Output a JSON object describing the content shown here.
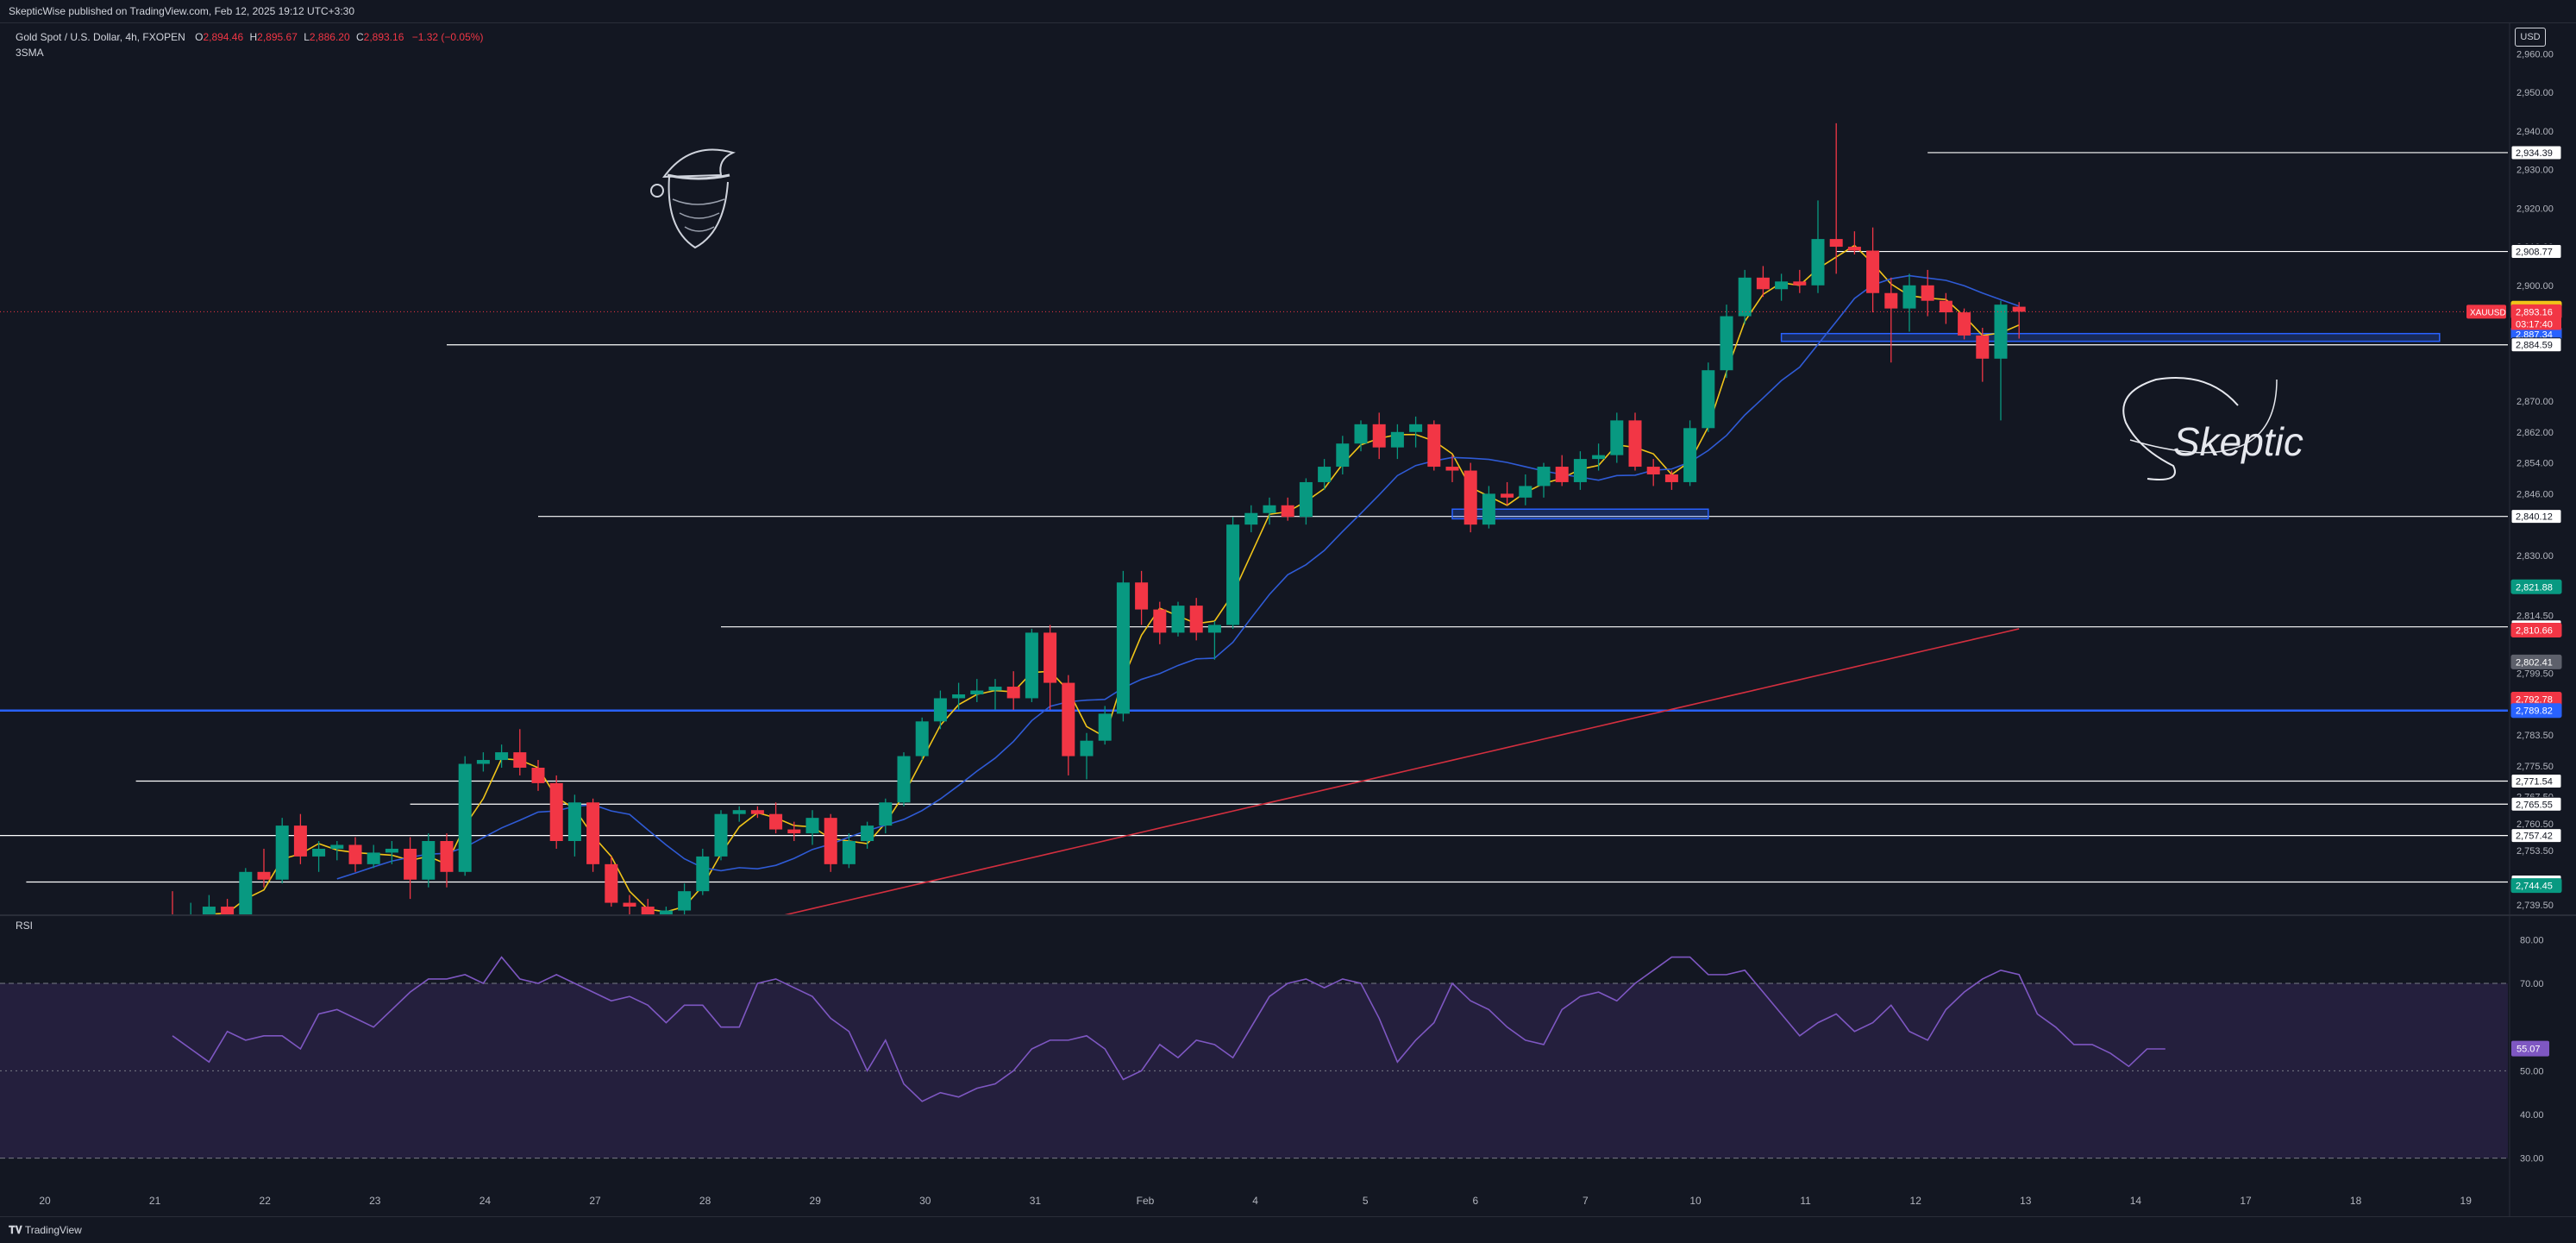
{
  "header": {
    "published": "SkepticWise published on TradingView.com, Feb 12, 2025 19:12 UTC+3:30"
  },
  "legend": {
    "symbol": "Gold Spot / U.S. Dollar, 4h, FXOPEN",
    "o_label": "O",
    "o_value": "2,894.46",
    "h_label": "H",
    "h_value": "2,895.67",
    "l_label": "L",
    "l_value": "2,886.20",
    "c_label": "C",
    "c_value": "2,893.16",
    "change": "−1.32 (−0.05%)",
    "indicator": "3SMA"
  },
  "currency": "USD",
  "symbol_tag": "XAUUSD",
  "countdown": "03:17:40",
  "rsi_label": "RSI",
  "rsi_value": "55.07",
  "signature": "Skeptic",
  "footer": {
    "brand": "TradingView"
  },
  "colors": {
    "background": "#131722",
    "up": "#089981",
    "down": "#f23645",
    "sma_fast": "#f0c419",
    "sma_mid": "#2f5bd6",
    "sma_slow": "#d32f3f",
    "rsi_line": "#7e57c2",
    "rsi_band": "#241f3d",
    "zone_blue": "#2962ff"
  },
  "chart_data": [
    {
      "type": "candlestick",
      "timeframe": "4h",
      "ylim": [
        2737,
        2965
      ],
      "y_ticks": [
        "2,960.00",
        "2,950.00",
        "2,940.00",
        "2,930.00",
        "2,920.00",
        "2,910.00",
        "2,900.00",
        "2,870.00",
        "2,862.00",
        "2,854.00",
        "2,846.00",
        "2,830.00",
        "2,814.50",
        "2,799.50",
        "2,783.50",
        "2,775.50",
        "2,767.50",
        "2,760.50",
        "2,753.50",
        "2,746.50",
        "2,739.50"
      ],
      "x_ticks": [
        "20",
        "21",
        "22",
        "23",
        "24",
        "27",
        "28",
        "29",
        "30",
        "31",
        "Feb",
        "4",
        "5",
        "6",
        "7",
        "10",
        "11",
        "12",
        "13",
        "14",
        "17",
        "18",
        "19"
      ],
      "candles": [
        [
          2736,
          2743,
          2733,
          2735
        ],
        [
          2735,
          2740,
          2732,
          2737
        ],
        [
          2737,
          2742,
          2734,
          2739
        ],
        [
          2739,
          2741,
          2735,
          2736
        ],
        [
          2736,
          2749,
          2735,
          2748
        ],
        [
          2748,
          2754,
          2744,
          2746
        ],
        [
          2746,
          2762,
          2745,
          2760
        ],
        [
          2760,
          2763,
          2750,
          2752
        ],
        [
          2752,
          2756,
          2748,
          2754
        ],
        [
          2754,
          2756,
          2751,
          2755
        ],
        [
          2755,
          2757,
          2748,
          2750
        ],
        [
          2750,
          2755,
          2749,
          2753
        ],
        [
          2753,
          2756,
          2750,
          2754
        ],
        [
          2754,
          2757,
          2741,
          2746
        ],
        [
          2746,
          2758,
          2744,
          2756
        ],
        [
          2756,
          2758,
          2744,
          2748
        ],
        [
          2748,
          2778,
          2747,
          2776
        ],
        [
          2776,
          2779,
          2774,
          2777
        ],
        [
          2777,
          2781,
          2775,
          2779
        ],
        [
          2779,
          2785,
          2773,
          2775
        ],
        [
          2775,
          2777,
          2769,
          2771
        ],
        [
          2771,
          2773,
          2754,
          2756
        ],
        [
          2756,
          2768,
          2752,
          2766
        ],
        [
          2766,
          2767,
          2748,
          2750
        ],
        [
          2750,
          2752,
          2739,
          2740
        ],
        [
          2740,
          2742,
          2737,
          2739
        ],
        [
          2739,
          2741,
          2735,
          2736
        ],
        [
          2736,
          2739,
          2733,
          2738
        ],
        [
          2738,
          2745,
          2737,
          2743
        ],
        [
          2743,
          2754,
          2742,
          2752
        ],
        [
          2752,
          2764,
          2751,
          2763
        ],
        [
          2763,
          2765,
          2761,
          2764
        ],
        [
          2764,
          2765,
          2762,
          2763
        ],
        [
          2763,
          2766,
          2758,
          2759
        ],
        [
          2759,
          2761,
          2756,
          2758
        ],
        [
          2758,
          2764,
          2755,
          2762
        ],
        [
          2762,
          2763,
          2748,
          2750
        ],
        [
          2750,
          2758,
          2749,
          2756
        ],
        [
          2756,
          2761,
          2754,
          2760
        ],
        [
          2760,
          2767,
          2758,
          2766
        ],
        [
          2766,
          2779,
          2765,
          2778
        ],
        [
          2778,
          2788,
          2777,
          2787
        ],
        [
          2787,
          2795,
          2785,
          2793
        ],
        [
          2793,
          2797,
          2790,
          2794
        ],
        [
          2794,
          2798,
          2792,
          2795
        ],
        [
          2795,
          2798,
          2790,
          2796
        ],
        [
          2796,
          2800,
          2790,
          2793
        ],
        [
          2793,
          2811,
          2792,
          2810
        ],
        [
          2810,
          2812,
          2790,
          2797
        ],
        [
          2797,
          2799,
          2773,
          2778
        ],
        [
          2778,
          2784,
          2772,
          2782
        ],
        [
          2782,
          2791,
          2781,
          2789
        ],
        [
          2789,
          2826,
          2787,
          2823
        ],
        [
          2823,
          2826,
          2812,
          2816
        ],
        [
          2816,
          2818,
          2807,
          2810
        ],
        [
          2810,
          2818,
          2809,
          2817
        ],
        [
          2817,
          2819,
          2808,
          2810
        ],
        [
          2810,
          2813,
          2803,
          2812
        ],
        [
          2812,
          2840,
          2811,
          2838
        ],
        [
          2838,
          2843,
          2836,
          2841
        ],
        [
          2841,
          2845,
          2838,
          2843
        ],
        [
          2843,
          2845,
          2839,
          2840
        ],
        [
          2840,
          2850,
          2838,
          2849
        ],
        [
          2849,
          2855,
          2847,
          2853
        ],
        [
          2853,
          2861,
          2851,
          2859
        ],
        [
          2859,
          2865,
          2857,
          2864
        ],
        [
          2864,
          2867,
          2855,
          2858
        ],
        [
          2858,
          2864,
          2855,
          2862
        ],
        [
          2862,
          2866,
          2858,
          2864
        ],
        [
          2864,
          2865,
          2852,
          2853
        ],
        [
          2853,
          2856,
          2849,
          2852
        ],
        [
          2852,
          2854,
          2836,
          2838
        ],
        [
          2838,
          2848,
          2837,
          2846
        ],
        [
          2846,
          2849,
          2843,
          2845
        ],
        [
          2845,
          2851,
          2843,
          2848
        ],
        [
          2848,
          2854,
          2845,
          2853
        ],
        [
          2853,
          2856,
          2848,
          2849
        ],
        [
          2849,
          2857,
          2847,
          2855
        ],
        [
          2855,
          2859,
          2852,
          2856
        ],
        [
          2856,
          2867,
          2854,
          2865
        ],
        [
          2865,
          2867,
          2852,
          2853
        ],
        [
          2853,
          2855,
          2848,
          2851
        ],
        [
          2851,
          2852,
          2847,
          2849
        ],
        [
          2849,
          2865,
          2848,
          2863
        ],
        [
          2863,
          2880,
          2862,
          2878
        ],
        [
          2878,
          2895,
          2876,
          2892
        ],
        [
          2892,
          2904,
          2890,
          2902
        ],
        [
          2902,
          2905,
          2897,
          2899
        ],
        [
          2899,
          2903,
          2896,
          2901
        ],
        [
          2901,
          2904,
          2898,
          2900
        ],
        [
          2900,
          2922,
          2898,
          2912
        ],
        [
          2912,
          2942,
          2903,
          2910
        ],
        [
          2910,
          2914,
          2908,
          2909
        ],
        [
          2909,
          2915,
          2893,
          2898
        ],
        [
          2898,
          2902,
          2880,
          2894
        ],
        [
          2894,
          2903,
          2888,
          2900
        ],
        [
          2900,
          2904,
          2892,
          2896
        ],
        [
          2896,
          2898,
          2890,
          2893
        ],
        [
          2893,
          2894,
          2886,
          2887
        ],
        [
          2887,
          2889,
          2875,
          2881
        ],
        [
          2881,
          2896,
          2865,
          2895
        ],
        [
          2894.46,
          2895.67,
          2886.2,
          2893.16
        ]
      ]
    },
    {
      "type": "line",
      "name": "RSI",
      "ylim": [
        25,
        85
      ],
      "y_ticks": [
        "80.00",
        "70.00",
        "50.00",
        "40.00",
        "30.00"
      ],
      "band": [
        30,
        70
      ],
      "midline": 50,
      "values": [
        58,
        55,
        52,
        59,
        57,
        58,
        58,
        55,
        63,
        64,
        62,
        60,
        64,
        68,
        71,
        71,
        72,
        70,
        76,
        71,
        70,
        72,
        70,
        68,
        66,
        67,
        65,
        61,
        65,
        65,
        60,
        60,
        70,
        71,
        69,
        67,
        62,
        59,
        50,
        57,
        47,
        43,
        45,
        44,
        46,
        47,
        50,
        55,
        57,
        57,
        58,
        55,
        48,
        50,
        56,
        53,
        57,
        56,
        53,
        60,
        67,
        70,
        71,
        69,
        71,
        70,
        62,
        52,
        57,
        61,
        70,
        66,
        64,
        60,
        57,
        56,
        64,
        67,
        68,
        66,
        70,
        73,
        76,
        76,
        72,
        72,
        73,
        68,
        63,
        58,
        61,
        63,
        59,
        61,
        65,
        59,
        57,
        64,
        68,
        71,
        73,
        72,
        63,
        60,
        56,
        56,
        54,
        51,
        55,
        55
      ]
    }
  ],
  "price_labels": [
    "2,934.39",
    "2,908.77",
    "2,894.08",
    "2,893.16",
    "2,887.34",
    "2,884.59",
    "2,840.12",
    "2,821.88",
    "2,811.50",
    "2,810.66",
    "2,802.41",
    "2,792.78",
    "2,789.82",
    "2,771.54",
    "2,765.55",
    "2,757.42",
    "2,745.38",
    "2,744.45"
  ]
}
